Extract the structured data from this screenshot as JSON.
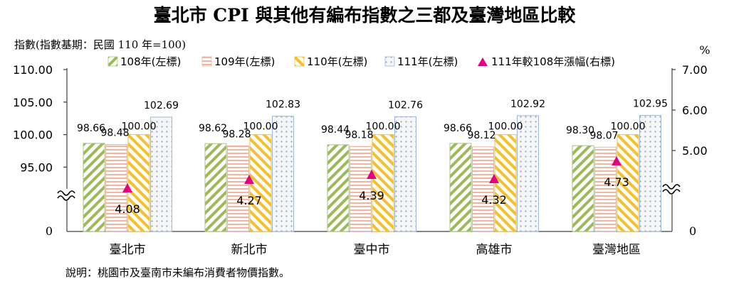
{
  "chart_data": {
    "type": "bar",
    "title": "臺北市 CPI 與其他有編布指數之三都及臺灣地區比較",
    "left_axis_label": "指數(指數基期：民國 110 年=100)",
    "right_axis_unit": "%",
    "note": "說明：桃園市及臺南市未編布消費者物價指數。",
    "categories": [
      "臺北市",
      "新北市",
      "臺中市",
      "高雄市",
      "臺灣地區"
    ],
    "series": [
      {
        "name": "108年(左標)",
        "values": [
          98.66,
          98.62,
          98.44,
          98.66,
          98.3
        ],
        "color": "#548235",
        "pattern": "diag"
      },
      {
        "name": "109年(左標)",
        "values": [
          98.48,
          98.28,
          98.18,
          98.12,
          98.07
        ],
        "color": "#e0917a",
        "pattern": "horiz"
      },
      {
        "name": "110年(左標)",
        "values": [
          100.0,
          100.0,
          100.0,
          100.0,
          100.0
        ],
        "color": "#f0b400",
        "pattern": "diag2"
      },
      {
        "name": "111年(左標)",
        "values": [
          102.69,
          102.83,
          102.76,
          102.92,
          102.95
        ],
        "color": "#8eaadb",
        "pattern": "dots"
      }
    ],
    "growth_series": {
      "name": "111年較108年漲幅(右標)",
      "values": [
        4.08,
        4.27,
        4.39,
        4.32,
        4.73
      ],
      "color": "#e6007e"
    },
    "left_axis": {
      "tick_labels": [
        "110.00",
        "105.00",
        "100.00",
        "95.00",
        "0"
      ],
      "tick_values": [
        110,
        105,
        100,
        95
      ]
    },
    "right_axis": {
      "tick_labels": [
        "7.00",
        "6.00",
        "5.00",
        "0"
      ],
      "tick_values": [
        7,
        6,
        5
      ]
    }
  }
}
